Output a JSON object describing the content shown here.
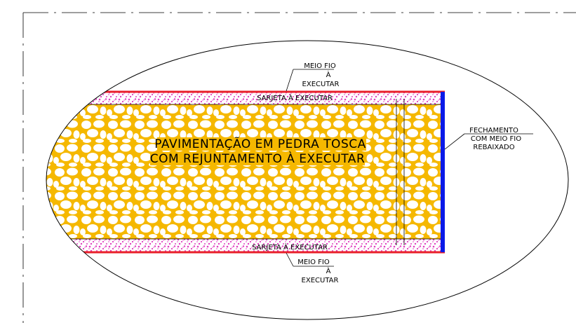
{
  "main_label": {
    "line1": "PAVIMENTAÇÃO EM PEDRA TOSCA",
    "line2": "COM REJUNTAMENTO À EXECUTAR"
  },
  "sarjeta_top": "SARJETA À EXECUTAR",
  "sarjeta_bottom": "SARJETA À EXECUTAR",
  "meio_fio_top": {
    "line1": "MEIO FIO",
    "line2": "À",
    "line3": "EXECUTAR"
  },
  "meio_fio_bottom": {
    "line1": "MEIO FIO",
    "line2": "À",
    "line3": "EXECUTAR"
  },
  "fechamento": {
    "line1": "FECHAMENTO",
    "line2": "COM MEIO FIO",
    "line3": "REBAIXADO"
  },
  "colors": {
    "stone": "#f5b800",
    "stone_gap": "#ffffff",
    "sarjeta_dots": "#e040c0",
    "curb": "#e8202a",
    "closure": "#0a1ae8",
    "line": "#000000"
  }
}
